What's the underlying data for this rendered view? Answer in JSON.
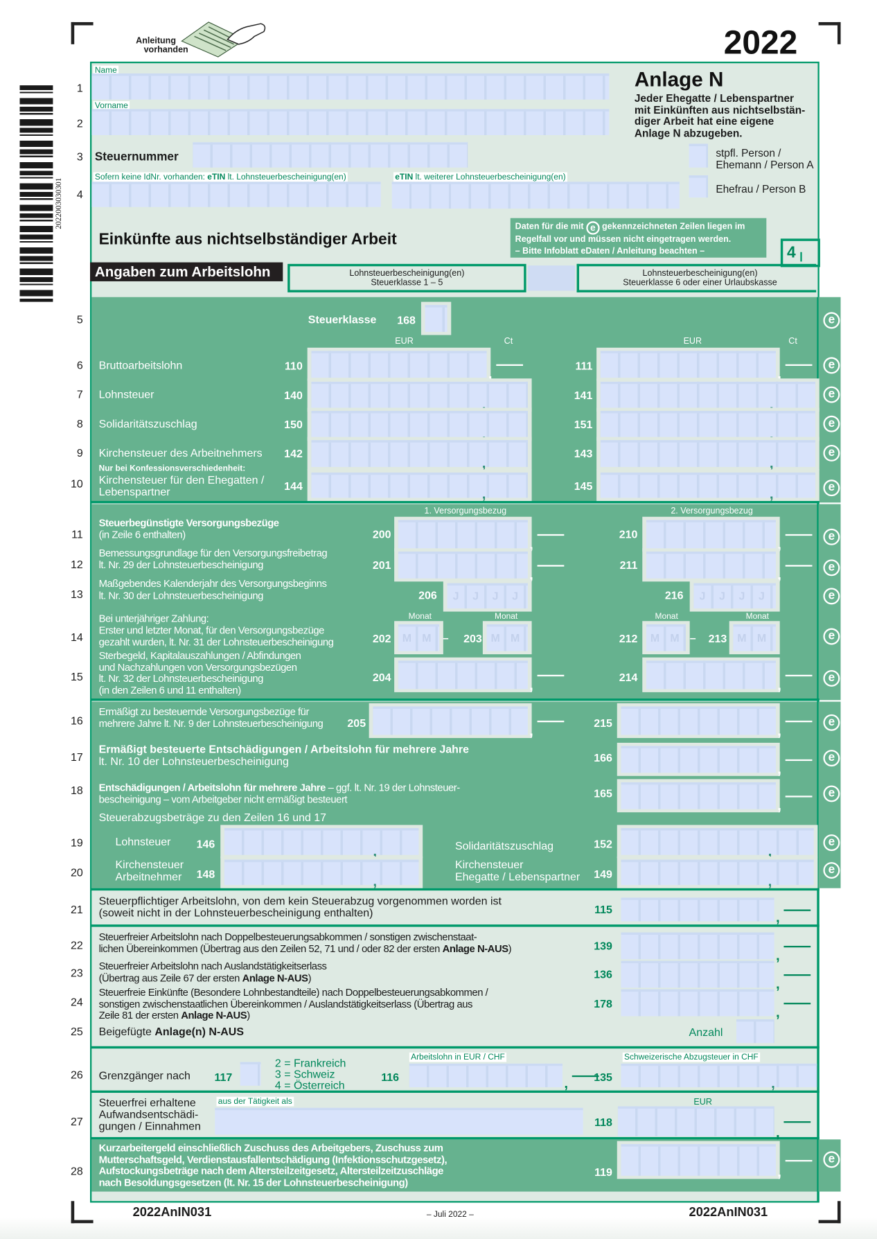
{
  "top": {
    "guide_label_1": "Anleitung",
    "guide_label_2": "vorhanden",
    "year": "2022",
    "vertical_code": "2022003030301"
  },
  "personal": {
    "name_label": "Name",
    "firstname_label": "Vorname",
    "tax_number_label": "Steuernummer",
    "etin_prefix": "Sofern keine IdNr. vorhanden: ",
    "etin_bold": "eTIN",
    "etin_rest": " lt. Lohnsteuerbescheinigung(en)",
    "etin2_bold": "eTIN",
    "etin2_rest": " lt. weiterer Lohnsteuerbescheinigung(en)"
  },
  "title_block": {
    "title": "Anlage N",
    "note": [
      "Jeder Ehegatte / Lebenspartner",
      "mit Einkünften aus nichtselbstän-",
      "diger Arbeit hat eine eigene",
      "Anlage N abzugeben."
    ],
    "person_a": [
      "stpfl. Person /",
      "Ehemann / Person A"
    ],
    "person_b": "Ehefrau / Person B"
  },
  "info_box": {
    "line1_a": "Daten für die mit",
    "line1_b": "gekennzeichneten Zeilen liegen im",
    "line2": "Regelfall vor und müssen nicht eingetragen werden.",
    "line3": "–  Bitte Infoblatt eDaten / Anleitung beachten  –",
    "icon": "e-circle-icon"
  },
  "section_title": "Einkünfte aus nichtselbständiger Arbeit",
  "page_number": "4",
  "wages_header": {
    "title": "Angaben zum Arbeitslohn",
    "col1": [
      "Lohnsteuerbescheinigung(en)",
      "Steuerklasse 1 – 5"
    ],
    "col2": [
      "Lohnsteuerbescheinigung(en)",
      "Steuerklasse 6 oder einer Urlaubskasse"
    ]
  },
  "col_labels": {
    "eur": "EUR",
    "ct": "Ct",
    "vb1": "1. Versorgungsbezug",
    "vb2": "2. Versorgungsbezug",
    "monat": "Monat",
    "year_placeholder": "J",
    "month_placeholder": "M",
    "range_dash": "–"
  },
  "rows": {
    "r5": {
      "num": "5",
      "label": "Steuerklasse",
      "code": "168"
    },
    "r6": {
      "num": "6",
      "label": "Bruttoarbeitslohn",
      "code_a": "110",
      "code_b": "111"
    },
    "r7": {
      "num": "7",
      "label": "Lohnsteuer",
      "code_a": "140",
      "code_b": "141"
    },
    "r8": {
      "num": "8",
      "label": "Solidaritätszuschlag",
      "code_a": "150",
      "code_b": "151"
    },
    "r9": {
      "num": "9",
      "label": "Kirchensteuer des Arbeitnehmers",
      "code_a": "142",
      "code_b": "143"
    },
    "r10": {
      "num": "10",
      "note": "Nur bei Konfessionsverschiedenheit:",
      "label": [
        "Kirchensteuer für den Ehegatten /",
        "Lebenspartner"
      ],
      "code_a": "144",
      "code_b": "145"
    },
    "r11": {
      "num": "11",
      "label": [
        "Steuerbegünstigte Versorgungsbezüge",
        "(in Zeile 6 enthalten)"
      ],
      "code_a": "200",
      "code_b": "210"
    },
    "r12": {
      "num": "12",
      "label": [
        "Bemessungsgrundlage für den Versorgungsfreibetrag",
        "lt. Nr. 29 der Lohnsteuerbescheinigung"
      ],
      "code_a": "201",
      "code_b": "211"
    },
    "r13": {
      "num": "13",
      "label": [
        "Maßgebendes Kalenderjahr des Versorgungsbeginns",
        "lt. Nr. 30 der Lohnsteuerbescheinigung"
      ],
      "code_a": "206",
      "code_b": "216"
    },
    "r14": {
      "num": "14",
      "label": [
        "Bei unterjähriger Zahlung:",
        "Erster und letzter Monat, für den Versorgungsbezüge",
        "gezahlt wurden, lt. Nr. 31 der Lohnsteuerbescheinigung"
      ],
      "code_a": "202",
      "code_a2": "203",
      "code_b": "212",
      "code_b2": "213"
    },
    "r15": {
      "num": "15",
      "label": [
        "Sterbegeld, Kapitalauszahlungen / Abfindungen",
        "und Nachzahlungen von Versorgungsbezügen",
        "lt. Nr. 32 der Lohnsteuerbescheinigung",
        "(in den Zeilen 6 und 11 enthalten)"
      ],
      "code_a": "204",
      "code_b": "214"
    },
    "r16": {
      "num": "16",
      "label": [
        "Ermäßigt zu besteuernde Versorgungsbezüge für",
        "mehrere Jahre lt. Nr. 9 der Lohnsteuerbescheinigung"
      ],
      "code_a": "205",
      "code_b": "215"
    },
    "r17": {
      "num": "17",
      "label": [
        "Ermäßigt besteuerte Entschädigungen / Arbeitslohn für mehrere Jahre",
        "lt. Nr. 10 der Lohnsteuerbescheinigung"
      ],
      "code": "166"
    },
    "r18": {
      "num": "18",
      "label_bold": "Entschädigungen / Arbeitslohn für mehrere Jahre",
      "label_rest": " – ggf. lt. Nr. 19 der Lohnsteuer-",
      "label_2": "bescheinigung – vom Arbeitgeber nicht ermäßigt besteuert",
      "code": "165"
    },
    "subheading_19_20": "Steuerabzugsbeträge zu den Zeilen 16 und 17",
    "r19": {
      "num": "19",
      "label_a": "Lohnsteuer",
      "code_a": "146",
      "label_b": "Solidaritätszuschlag",
      "code_b": "152"
    },
    "r20": {
      "num": "20",
      "label_a": [
        "Kirchensteuer",
        "Arbeitnehmer"
      ],
      "code_a": "148",
      "label_b": [
        "Kirchensteuer",
        "Ehegatte / Lebenspartner"
      ],
      "code_b": "149"
    },
    "r21": {
      "num": "21",
      "label": [
        "Steuerpflichtiger Arbeitslohn, von dem kein Steuerabzug vorgenommen worden ist",
        "(soweit nicht in der Lohnsteuerbescheinigung enthalten)"
      ],
      "code": "115"
    },
    "r22": {
      "num": "22",
      "label_1": "Steuerfreier Arbeitslohn nach Doppelbesteuerungsabkommen / sonstigen zwischenstaat-",
      "label_2": "lichen Übereinkommen (Übertrag aus den Zeilen 52, 71 und / oder 82 der ersten ",
      "label_bold": "Anlage N-AUS",
      "label_end": ")",
      "code": "139"
    },
    "r23": {
      "num": "23",
      "label_1": "Steuerfreier Arbeitslohn nach Auslandstätigkeitserlass",
      "label_2": "(Übertrag aus Zeile 67 der ersten ",
      "label_bold": "Anlage N-AUS",
      "label_end": ")",
      "code": "136"
    },
    "r24": {
      "num": "24",
      "label_1": "Steuerfreie Einkünfte (Besondere Lohnbestandteile) nach Doppelbesteuerungsabkommen /",
      "label_2": "sonstigen zwischenstaatlichen Übereinkommen / Auslandstätigkeitserlass (Übertrag aus",
      "label_3": "Zeile 81 der ersten ",
      "label_bold": "Anlage N-AUS",
      "label_end": ")",
      "code": "178"
    },
    "r25": {
      "num": "25",
      "label": "Beigefügte ",
      "label_bold": "Anlage(n) N-AUS",
      "count_label": "Anzahl"
    },
    "r26": {
      "num": "26",
      "label": "Grenzgänger nach",
      "code_country": "117",
      "options": [
        "2 = Frankreich",
        "3 = Schweiz",
        "4 = Österreich"
      ],
      "code_wage": "116",
      "wage_label": "Arbeitslohn in EUR / CHF",
      "code_tax": "135",
      "tax_label": "Schweizerische Abzugsteuer in CHF"
    },
    "r27": {
      "num": "27",
      "label": [
        "Steuerfrei erhaltene",
        "Aufwandsentschädi-",
        "gungen / Einnahmen"
      ],
      "activity_label": "aus der Tätigkeit als",
      "eur": "EUR",
      "code": "118"
    },
    "r28": {
      "num": "28",
      "label": [
        "Kurzarbeitergeld einschließlich Zuschuss des Arbeitgebers, Zuschuss zum",
        "Mutterschaftsgeld, Verdienstausfallentschädigung (Infektionsschutzgesetz),",
        "Aufstockungsbeträge nach dem Altersteilzeitgesetz, Altersteilzeitzuschläge",
        "nach Besoldungsgesetzen (lt. Nr. 15 der Lohnsteuerbescheinigung)"
      ],
      "code": "119"
    }
  },
  "footer": {
    "code_left": "2022AnIN031",
    "date": "– Juli 2022 –",
    "code_right": "2022AnIN031"
  },
  "e_marker": "e",
  "colors": {
    "form_bg": "#deeae3",
    "section_green": "#66b28f",
    "border_green": "#00996a",
    "field_blue": "#d8e3fb",
    "code_green": "#00875a"
  }
}
